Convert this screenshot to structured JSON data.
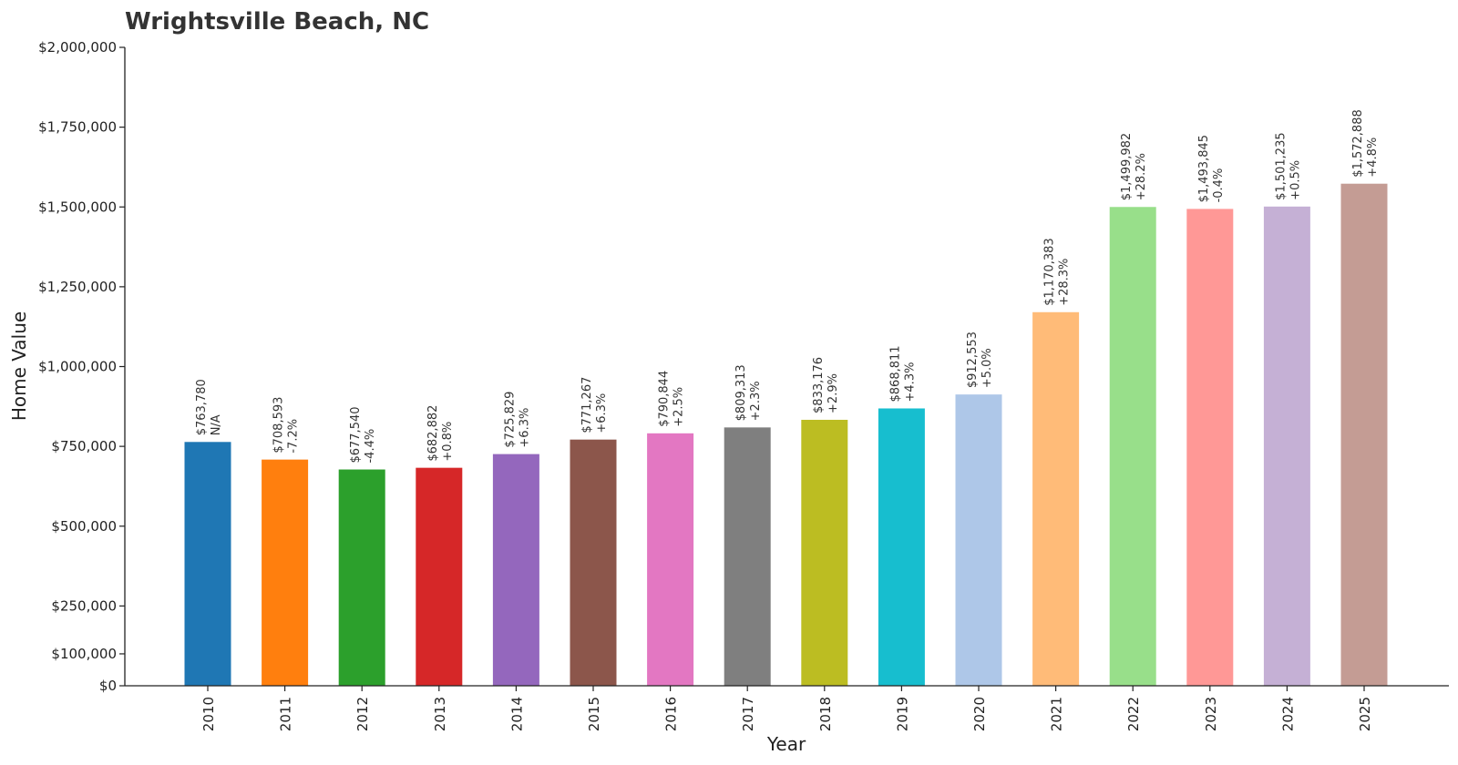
{
  "chart_data": {
    "type": "bar",
    "title": "Wrightsville Beach, NC",
    "xlabel": "Year",
    "ylabel": "Home Value",
    "ylim": [
      0,
      2000000
    ],
    "yticks": [
      {
        "value": 0,
        "label": "$0"
      },
      {
        "value": 100000,
        "label": "$100,000"
      },
      {
        "value": 250000,
        "label": "$250,000"
      },
      {
        "value": 500000,
        "label": "$500,000"
      },
      {
        "value": 750000,
        "label": "$750,000"
      },
      {
        "value": 1000000,
        "label": "$1,000,000"
      },
      {
        "value": 1250000,
        "label": "$1,250,000"
      },
      {
        "value": 1500000,
        "label": "$1,500,000"
      },
      {
        "value": 1750000,
        "label": "$1,750,000"
      },
      {
        "value": 2000000,
        "label": "$2,000,000"
      }
    ],
    "categories": [
      "2010",
      "2011",
      "2012",
      "2013",
      "2014",
      "2015",
      "2016",
      "2017",
      "2018",
      "2019",
      "2020",
      "2021",
      "2022",
      "2023",
      "2024",
      "2025"
    ],
    "values": [
      763780,
      708593,
      677540,
      682882,
      725829,
      771267,
      790844,
      809313,
      833176,
      868811,
      912553,
      1170383,
      1499982,
      1493845,
      1501235,
      1572888
    ],
    "value_labels": [
      "$763,780",
      "$708,593",
      "$677,540",
      "$682,882",
      "$725,829",
      "$771,267",
      "$790,844",
      "$809,313",
      "$833,176",
      "$868,811",
      "$912,553",
      "$1,170,383",
      "$1,499,982",
      "$1,493,845",
      "$1,501,235",
      "$1,572,888"
    ],
    "change_labels": [
      "N/A",
      "-7.2%",
      "-4.4%",
      "+0.8%",
      "+6.3%",
      "+6.3%",
      "+2.5%",
      "+2.3%",
      "+2.9%",
      "+4.3%",
      "+5.0%",
      "+28.3%",
      "+28.2%",
      "-0.4%",
      "+0.5%",
      "+4.8%"
    ],
    "colors": [
      "#1f77b4",
      "#ff7f0e",
      "#2ca02c",
      "#d62728",
      "#9467bd",
      "#8c564b",
      "#e377c2",
      "#7f7f7f",
      "#bcbd22",
      "#17becf",
      "#aec7e8",
      "#ffbb78",
      "#98df8a",
      "#ff9896",
      "#c5b0d5",
      "#c49c94"
    ],
    "grid": false,
    "legend": "none"
  }
}
